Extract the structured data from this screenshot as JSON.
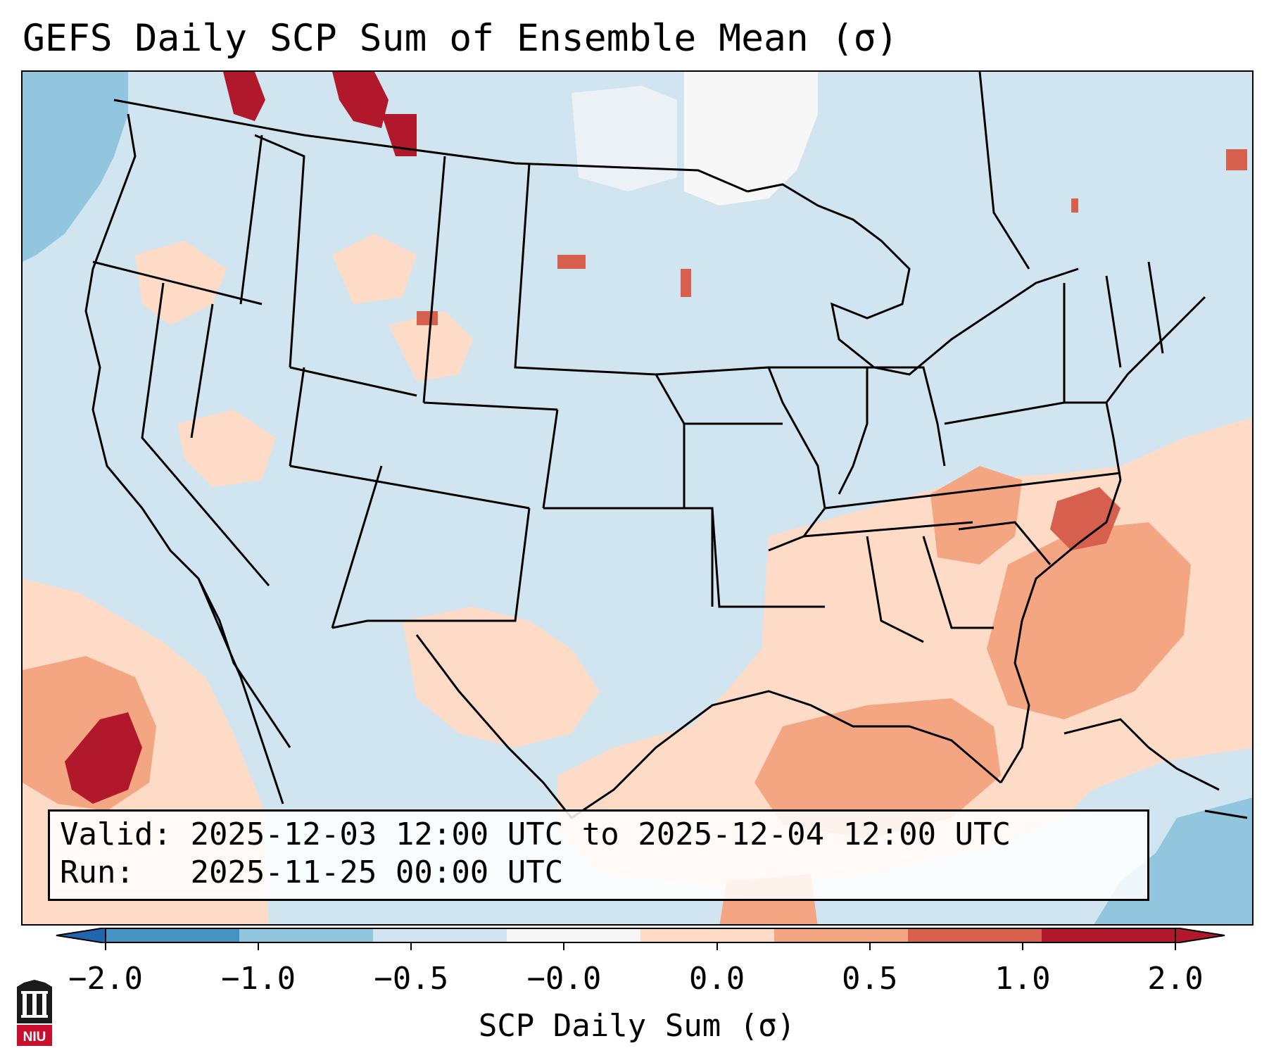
{
  "title": "GEFS Daily SCP Sum of Ensemble Mean (σ)",
  "info": {
    "valid_label": "Valid:",
    "valid_value": "2025-12-03 12:00 UTC to 2025-12-04 12:00 UTC",
    "run_label": "Run:",
    "run_value": "2025-11-25 00:00 UTC"
  },
  "colorbar": {
    "label": "SCP Daily Sum (σ)",
    "ticks": [
      "−2.0",
      "−1.0",
      "−0.5",
      "−0.0",
      "0.0",
      "0.5",
      "1.0",
      "2.0"
    ],
    "colors": [
      "#4393c3",
      "#92c5de",
      "#d1e5f0",
      "#f7f7f7",
      "#fddbc7",
      "#f4a582",
      "#d6604d",
      "#b2182b"
    ],
    "extend": "both"
  },
  "legend_colors": {
    "below_min": "#2166ac",
    "above_max": "#b2182b"
  },
  "logo": {
    "text": "NIU",
    "name": "niu-logo"
  }
}
